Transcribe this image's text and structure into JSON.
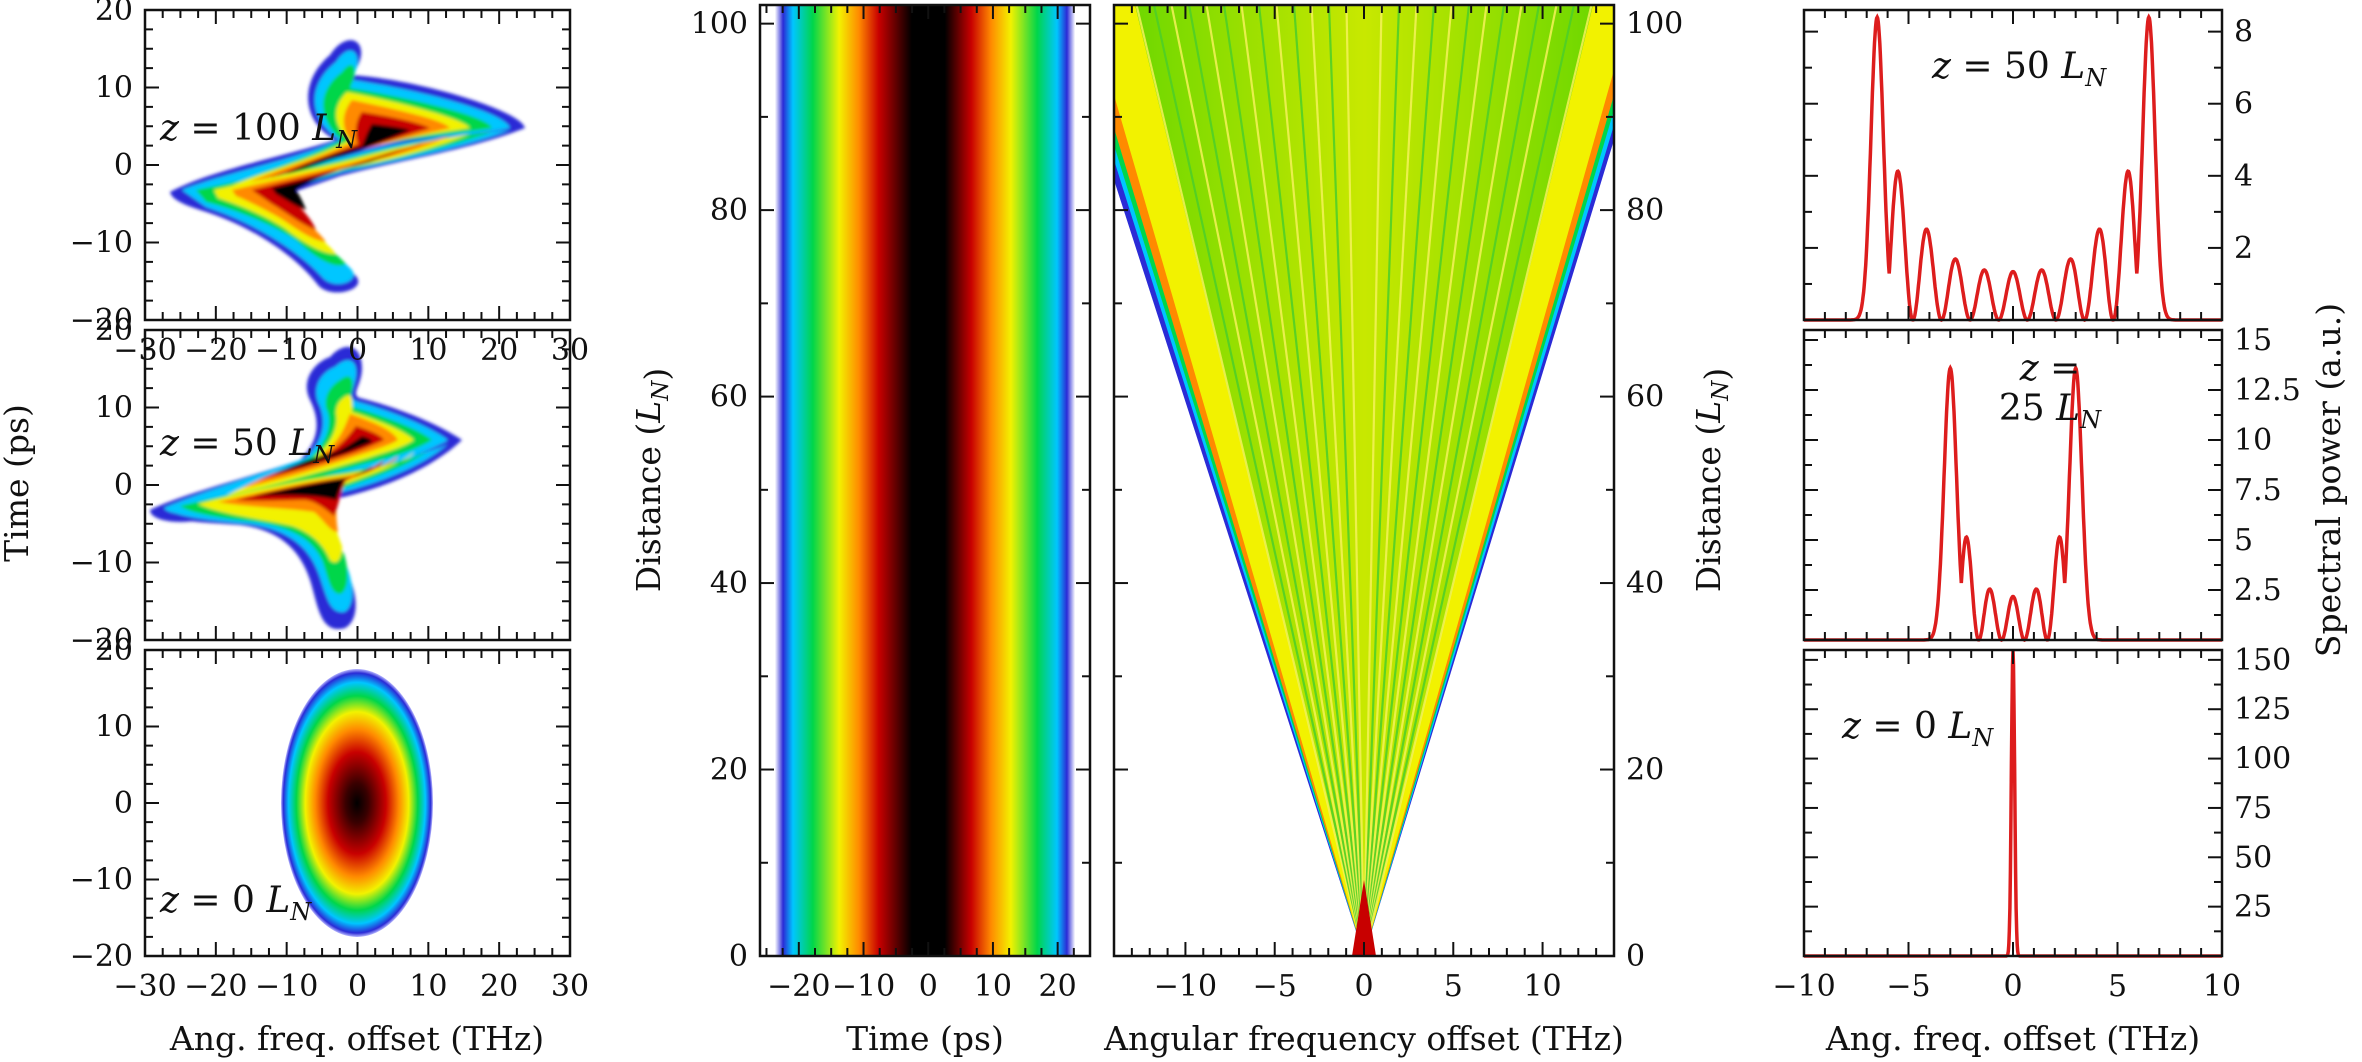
{
  "colors": {
    "line": "#dd1d1d",
    "frame": "#111111",
    "colormap": [
      "#ffffff",
      "#2b2bd6",
      "#00c6ff",
      "#00d64a",
      "#f2f200",
      "#ff8a00",
      "#c80000",
      "#000000"
    ]
  },
  "chart_data": [
    {
      "id": "wigner_z100",
      "type": "heatmap",
      "annotation": "z = 100 L_N",
      "xlim": [
        -30,
        30
      ],
      "ylim": [
        -20,
        20
      ],
      "xticks": [
        "-30",
        "-20",
        "-10",
        "0",
        "10",
        "20",
        "30"
      ],
      "yticks": [
        "-20",
        "-10",
        "0",
        "10",
        "20"
      ],
      "ylabel": "Time (ps)"
    },
    {
      "id": "wigner_z50",
      "type": "heatmap",
      "annotation": "z = 50 L_N",
      "xlim": [
        -30,
        30
      ],
      "ylim": [
        -20,
        20
      ],
      "yticks": [
        "-20",
        "-10",
        "0",
        "10",
        "20"
      ]
    },
    {
      "id": "wigner_z0",
      "type": "heatmap",
      "annotation": "z = 0 L_N",
      "xlim": [
        -30,
        30
      ],
      "ylim": [
        -20,
        20
      ],
      "xticks": [
        "-30",
        "-20",
        "-10",
        "0",
        "10",
        "20",
        "30"
      ],
      "yticks": [
        "-20",
        "-10",
        "0",
        "10",
        "20"
      ],
      "xlabel": "Ang. freq. offset (THz)"
    },
    {
      "id": "temporal_evolution",
      "type": "heatmap",
      "xlim": [
        -26,
        25
      ],
      "ylim": [
        0,
        102
      ],
      "xticks": [
        "-20",
        "-10",
        "0",
        "10",
        "20"
      ],
      "yticks": [
        "0",
        "20",
        "40",
        "60",
        "80",
        "100"
      ],
      "xlabel": "Time (ps)",
      "ylabel": "Distance (L_N)"
    },
    {
      "id": "spectral_evolution",
      "type": "heatmap",
      "xlim": [
        -14,
        14
      ],
      "ylim": [
        0,
        102
      ],
      "xticks": [
        "-10",
        "-5",
        "0",
        "5",
        "10"
      ],
      "yticks": [
        "0",
        "20",
        "40",
        "60",
        "80",
        "100"
      ],
      "xlabel": "Angular frequency offset (THz)",
      "ylabel": "Distance (L_N)"
    },
    {
      "id": "spectrum_z50",
      "type": "line",
      "annotation": "z = 50 L_N",
      "xlim": [
        -10,
        10
      ],
      "ylim": [
        0,
        8.6
      ],
      "yticks": [
        "2",
        "4",
        "6",
        "8"
      ],
      "series": [
        {
          "peak_offset_thz": 6.5,
          "peak_value": 8.4,
          "lobes": 9
        }
      ]
    },
    {
      "id": "spectrum_z25",
      "type": "line",
      "annotation_line1": "z =",
      "annotation_line2": "25 L_N",
      "xlim": [
        -10,
        10
      ],
      "ylim": [
        0,
        15.5
      ],
      "yticks": [
        "2.5",
        "5",
        "7.5",
        "10",
        "12.5",
        "15"
      ],
      "ylabel": "Spectral power (a.u.)",
      "series": [
        {
          "peak_offset_thz": 3.0,
          "peak_value": 13.6,
          "lobes": 5
        }
      ]
    },
    {
      "id": "spectrum_z0",
      "type": "line",
      "annotation": "z = 0 L_N",
      "xlim": [
        -10,
        10
      ],
      "ylim": [
        0,
        155
      ],
      "xticks": [
        "-10",
        "-5",
        "0",
        "5",
        "10"
      ],
      "yticks": [
        "25",
        "50",
        "75",
        "100",
        "125",
        "150"
      ],
      "xlabel": "Ang. freq. offset (THz)",
      "series": [
        {
          "peak_offset_thz": 0.0,
          "peak_value": 155
        }
      ]
    }
  ]
}
